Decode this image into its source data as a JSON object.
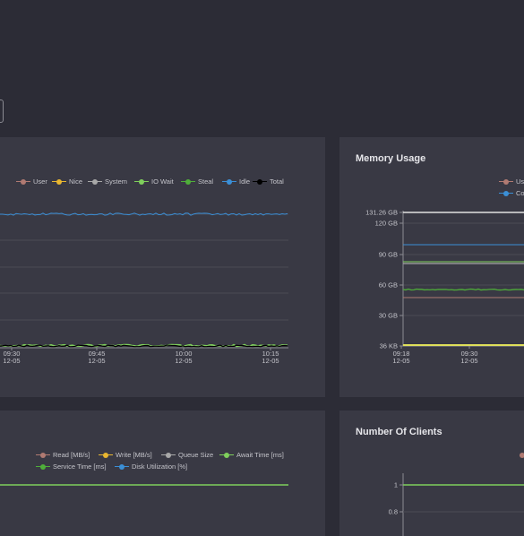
{
  "colors": {
    "background": "#2c2c36",
    "panel": "#393944",
    "user": "#b07a72",
    "nice": "#e8b630",
    "system": "#a8a8a8",
    "iowait": "#7fcf5c",
    "steal": "#4fae3a",
    "idle": "#3b8fd6",
    "total": "#000000",
    "committed": "#3b8fd6"
  },
  "panels": {
    "cpu": {
      "title": "",
      "legend": [
        {
          "label": "User",
          "color": "#b07a72"
        },
        {
          "label": "Nice",
          "color": "#e8b630"
        },
        {
          "label": "System",
          "color": "#a8a8a8"
        },
        {
          "label": "IO Wait",
          "color": "#7fcf5c"
        },
        {
          "label": "Steal",
          "color": "#4fae3a"
        },
        {
          "label": "Idle",
          "color": "#3b8fd6"
        },
        {
          "label": "Total",
          "color": "#000000"
        }
      ],
      "x_ticks": [
        {
          "time": "09:30",
          "date": "12-05"
        },
        {
          "time": "09:45",
          "date": "12-05"
        },
        {
          "time": "10:00",
          "date": "12-05"
        },
        {
          "time": "10:15",
          "date": "12-05"
        }
      ]
    },
    "memory": {
      "title": "Memory Usage",
      "legend": [
        {
          "label": "Us",
          "color": "#b07a72"
        },
        {
          "label": "Co",
          "color": "#3b8fd6"
        }
      ],
      "y_ticks": [
        "131.26 GB",
        "120 GB",
        "90 GB",
        "60 GB",
        "30 GB",
        "36 KB"
      ],
      "x_ticks": [
        {
          "time": "09:18",
          "date": "12-05"
        },
        {
          "time": "09:30",
          "date": "12-05"
        }
      ]
    },
    "disk": {
      "title": "",
      "legend": [
        {
          "label": "Read [MB/s]",
          "color": "#b07a72"
        },
        {
          "label": "Write [MB/s]",
          "color": "#e8b630"
        },
        {
          "label": "Queue Size",
          "color": "#a8a8a8"
        },
        {
          "label": "Await Time [ms]",
          "color": "#7fcf5c"
        },
        {
          "label": "Service Time [ms]",
          "color": "#4fae3a"
        },
        {
          "label": "Disk Utilization [%]",
          "color": "#3b8fd6"
        }
      ]
    },
    "clients": {
      "title": "Number Of Clients",
      "y_ticks": [
        "1",
        "0.8"
      ]
    }
  },
  "chart_data": [
    {
      "type": "line",
      "title": "",
      "x": [
        "09:30 12-05",
        "09:45 12-05",
        "10:00 12-05",
        "10:15 12-05"
      ],
      "series": [
        {
          "name": "Idle",
          "color": "#3b8fd6",
          "level": "near top"
        },
        {
          "name": "Total",
          "color": "#000000",
          "level": "near bottom"
        }
      ],
      "grid": true,
      "legend_position": "top-right"
    },
    {
      "type": "line",
      "title": "Memory Usage",
      "ylim": [
        "36 KB",
        "131.26 GB"
      ],
      "y_ticks": [
        "36 KB",
        "30 GB",
        "60 GB",
        "90 GB",
        "120 GB",
        "131.26 GB"
      ],
      "series": [
        {
          "name": "Us",
          "color": "#b07a72"
        },
        {
          "name": "Co",
          "color": "#3b8fd6"
        }
      ],
      "grid": true,
      "legend_position": "top-right"
    },
    {
      "type": "line",
      "title": "",
      "series": [
        {
          "name": "Await Time [ms]",
          "color": "#7fcf5c"
        }
      ],
      "legend_position": "top-right"
    },
    {
      "type": "line",
      "title": "Number Of Clients",
      "y_ticks": [
        "1",
        "0.8"
      ],
      "series": [
        {
          "name": "",
          "color": "#7fcf5c",
          "value": 1
        }
      ]
    }
  ]
}
